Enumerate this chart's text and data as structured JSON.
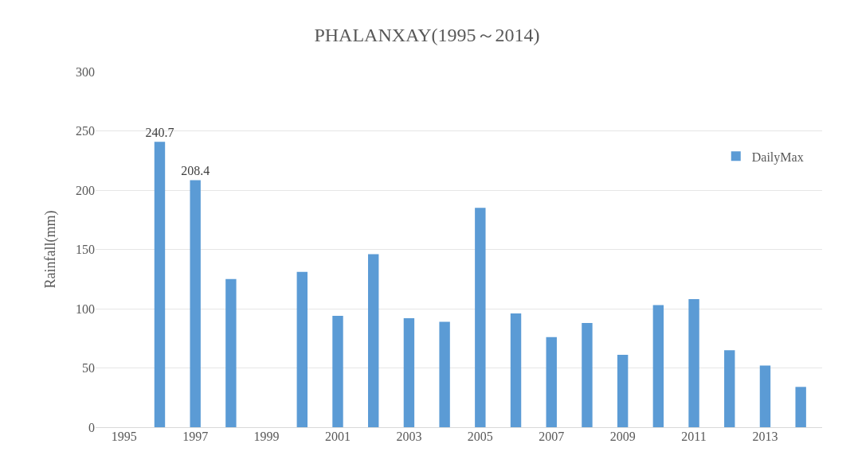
{
  "chart_data": {
    "type": "bar",
    "title": "PHALANXAY(1995～2014)",
    "ylabel": "Rainfall(mm)",
    "categories": [
      "1995",
      null,
      "1997",
      null,
      "1999",
      null,
      "2001",
      null,
      "2003",
      null,
      "2005",
      null,
      "2007",
      null,
      "2009",
      null,
      "2011",
      null,
      "2013",
      null
    ],
    "series": [
      {
        "name": "DailyMax",
        "color": "#5b9bd5",
        "values": [
          null,
          240.7,
          208.4,
          125,
          null,
          131,
          94,
          146,
          92,
          89,
          185,
          96,
          76,
          88,
          61,
          103,
          108,
          65,
          52,
          34
        ],
        "value_labels": [
          null,
          "240.7",
          "208.4",
          null,
          null,
          null,
          null,
          null,
          null,
          null,
          null,
          null,
          null,
          null,
          null,
          null,
          null,
          null,
          null,
          null
        ]
      }
    ],
    "ylim": [
      0,
      300
    ],
    "yticks": [
      0,
      50,
      100,
      150,
      200,
      250,
      300
    ],
    "grid": "y",
    "legend": "top right"
  }
}
